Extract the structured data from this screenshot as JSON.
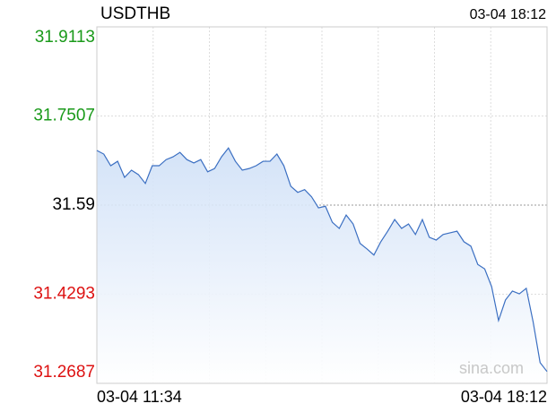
{
  "chart_data": {
    "type": "line",
    "title": "USDTHB",
    "updated": "03-04 18:12",
    "watermark": "sina.com",
    "categories": [
      "03-04 11:34",
      null,
      null,
      null,
      null,
      null,
      null,
      null,
      null,
      null,
      null,
      null,
      null,
      null,
      null,
      null,
      null,
      null,
      null,
      null,
      null,
      null,
      null,
      null,
      null,
      null,
      null,
      null,
      null,
      null,
      null,
      null,
      null,
      null,
      null,
      null,
      null,
      null,
      null,
      null,
      null,
      null,
      null,
      null,
      null,
      null,
      null,
      null,
      null,
      null,
      null,
      null,
      null,
      null,
      null,
      null,
      null,
      null,
      null,
      null,
      null,
      null,
      null,
      null,
      null,
      "03-04 18:12"
    ],
    "series": [
      {
        "name": "USDTHB",
        "color": "#3b6fc2",
        "values": [
          31.6885,
          31.682,
          31.661,
          31.669,
          31.64,
          31.653,
          31.645,
          31.629,
          31.661,
          31.661,
          31.672,
          31.677,
          31.685,
          31.672,
          31.666,
          31.672,
          31.65,
          31.656,
          31.677,
          31.693,
          31.669,
          31.653,
          31.656,
          31.661,
          31.669,
          31.669,
          31.682,
          31.661,
          31.624,
          31.613,
          31.618,
          31.605,
          31.585,
          31.588,
          31.559,
          31.548,
          31.572,
          31.556,
          31.521,
          31.511,
          31.5,
          31.524,
          31.543,
          31.564,
          31.548,
          31.556,
          31.537,
          31.564,
          31.532,
          31.527,
          31.537,
          31.54,
          31.543,
          31.524,
          31.516,
          31.483,
          31.475,
          31.443,
          31.382,
          31.419,
          31.435,
          31.43,
          31.44,
          31.379,
          31.306,
          31.29
        ]
      }
    ],
    "ylim": [
      31.2687,
      31.9113
    ],
    "yticks": [
      31.9113,
      31.7507,
      31.59,
      31.4293,
      31.2687
    ],
    "up_color": "#1a9a1a",
    "down_color": "#dd1111",
    "flat_color": "#000000",
    "grid": true
  }
}
